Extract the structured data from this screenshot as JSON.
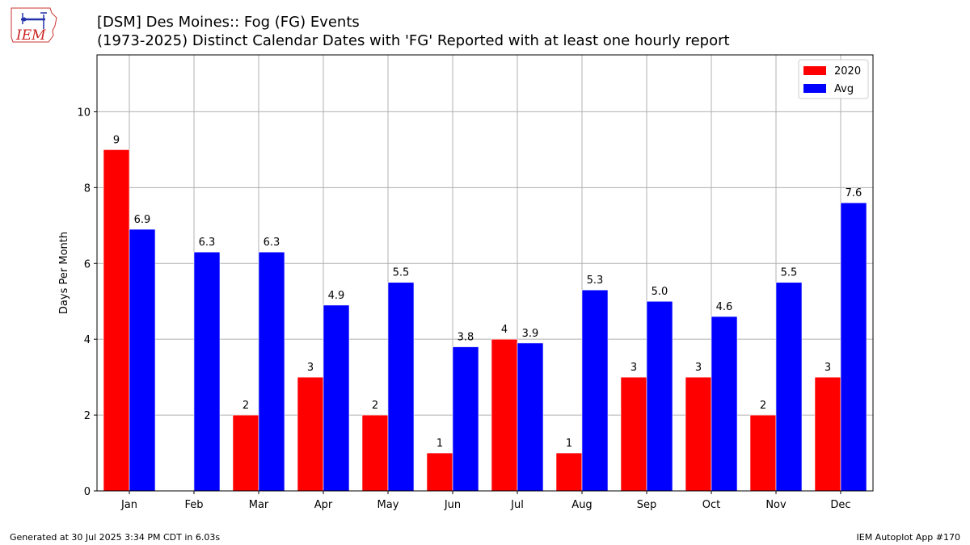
{
  "header": {
    "title_line1": "[DSM] Des Moines:: Fog (FG) Events",
    "title_line2": "(1973-2025) Distinct Calendar Dates with 'FG' Reported with at least one hourly report",
    "logo_text": "IEM"
  },
  "footer": {
    "generated": "Generated at 30 Jul 2025 3:34 PM CDT in 6.03s",
    "app": "IEM Autoplot App #170"
  },
  "chart_data": {
    "type": "bar",
    "title": "[DSM] Des Moines:: Fog (FG) Events",
    "subtitle": "(1973-2025) Distinct Calendar Dates with 'FG' Reported with at least one hourly report",
    "xlabel": "",
    "ylabel": "Days Per Month",
    "categories": [
      "Jan",
      "Feb",
      "Mar",
      "Apr",
      "May",
      "Jun",
      "Jul",
      "Aug",
      "Sep",
      "Oct",
      "Nov",
      "Dec"
    ],
    "series": [
      {
        "name": "2020",
        "color": "#ff0000",
        "values": [
          9,
          0,
          2,
          3,
          2,
          1,
          4,
          1,
          3,
          3,
          2,
          3
        ],
        "labels": [
          "9",
          "",
          "2",
          "3",
          "2",
          "1",
          "4",
          "1",
          "3",
          "3",
          "2",
          "3"
        ]
      },
      {
        "name": "Avg",
        "color": "#0000ff",
        "values": [
          6.9,
          6.3,
          6.3,
          4.9,
          5.5,
          3.8,
          3.9,
          5.3,
          5.0,
          4.6,
          5.5,
          7.6
        ],
        "labels": [
          "6.9",
          "6.3",
          "6.3",
          "4.9",
          "5.5",
          "3.8",
          "3.9",
          "5.3",
          "5.0",
          "4.6",
          "5.5",
          "7.6"
        ]
      }
    ],
    "ylim": [
      0,
      11.5
    ],
    "yticks": [
      "0",
      "2",
      "4",
      "6",
      "8",
      "10"
    ],
    "grid": true,
    "legend_position": "top-right"
  }
}
